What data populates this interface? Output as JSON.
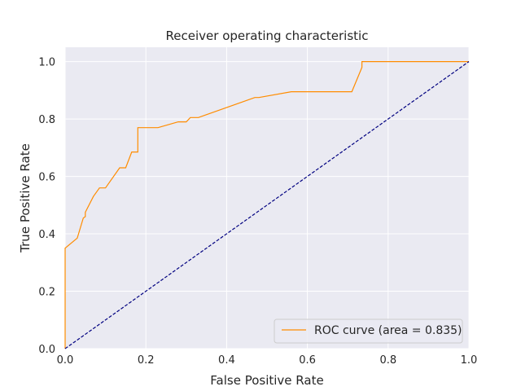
{
  "chart_data": {
    "type": "line",
    "title": "Receiver operating characteristic",
    "xlabel": "False Positive Rate",
    "ylabel": "True Positive Rate",
    "xlim": [
      0.0,
      1.0
    ],
    "ylim": [
      0.0,
      1.05
    ],
    "xticks": [
      0.0,
      0.2,
      0.4,
      0.6,
      0.8,
      1.0
    ],
    "yticks": [
      0.0,
      0.2,
      0.4,
      0.6,
      0.8,
      1.0
    ],
    "xtick_labels": [
      "0.0",
      "0.2",
      "0.4",
      "0.6",
      "0.8",
      "1.0"
    ],
    "ytick_labels": [
      "0.0",
      "0.2",
      "0.4",
      "0.6",
      "0.8",
      "1.0"
    ],
    "grid": true,
    "legend_position": "lower-right",
    "series": [
      {
        "name": "ROC curve (area = 0.835)",
        "color": "#ff8c00",
        "style": "solid",
        "x": [
          0.0,
          0.0,
          0.03,
          0.045,
          0.05,
          0.05,
          0.07,
          0.085,
          0.1,
          0.135,
          0.15,
          0.165,
          0.18,
          0.18,
          0.23,
          0.28,
          0.3,
          0.31,
          0.33,
          0.47,
          0.48,
          0.56,
          0.7,
          0.71,
          0.735,
          0.735,
          1.0
        ],
        "y": [
          0.0,
          0.35,
          0.385,
          0.455,
          0.46,
          0.475,
          0.53,
          0.56,
          0.56,
          0.63,
          0.63,
          0.685,
          0.685,
          0.77,
          0.77,
          0.79,
          0.79,
          0.805,
          0.805,
          0.875,
          0.875,
          0.895,
          0.895,
          0.895,
          0.98,
          1.0,
          1.0
        ]
      },
      {
        "name": "",
        "color": "#000080",
        "style": "dashed",
        "x": [
          0.0,
          1.0
        ],
        "y": [
          0.0,
          1.0
        ]
      }
    ]
  },
  "colors": {
    "plot_background": "#eaeaf2",
    "grid": "#ffffff",
    "text": "#262626",
    "legend_border": "#cccccc"
  }
}
